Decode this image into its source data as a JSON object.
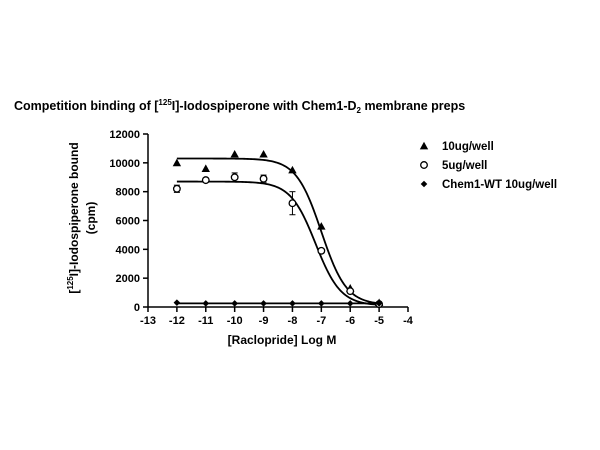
{
  "chart_data": {
    "type": "scatter",
    "title_parts": {
      "pre": "Competition binding of [",
      "sup": "125",
      "mid": "I]-Iodospiperone with Chem1-D",
      "sub": "2",
      "post": " membrane preps"
    },
    "xlabel": "[Raclopride] Log M",
    "ylabel_parts": {
      "pre": "[",
      "sup": "125",
      "mid": "I]-Iodospiperone bound",
      "line2": "(cpm)"
    },
    "xlim": [
      -13,
      -4
    ],
    "ylim": [
      0,
      12000
    ],
    "x_ticks": [
      -13,
      -12,
      -11,
      -10,
      -9,
      -8,
      -7,
      -6,
      -5,
      -4
    ],
    "y_ticks": [
      0,
      2000,
      4000,
      6000,
      8000,
      10000,
      12000
    ],
    "x_tick_labels": [
      "-13",
      "-12",
      "-11",
      "-10",
      "-9",
      "-8",
      "-7",
      "-6",
      "-5",
      "-4"
    ],
    "y_tick_labels": [
      "0",
      "2000",
      "4000",
      "6000",
      "8000",
      "10000",
      "12000"
    ],
    "legend_position": "right",
    "series": [
      {
        "name": "10ug/well",
        "marker": "triangle",
        "x": [
          -12,
          -11,
          -10,
          -9,
          -8,
          -7,
          -6,
          -5
        ],
        "y": [
          10000,
          9600,
          10600,
          10600,
          9500,
          5600,
          1300,
          300
        ],
        "fit": {
          "top": 10300,
          "bottom": 150,
          "logIC50": -7.0,
          "hill": 1.0
        }
      },
      {
        "name": "5ug/well",
        "marker": "circle",
        "x": [
          -12,
          -11,
          -10,
          -9,
          -8,
          -7,
          -6,
          -5
        ],
        "y": [
          8200,
          8800,
          9000,
          8900,
          7200,
          3900,
          1100,
          200
        ],
        "err": [
          250,
          150,
          300,
          250,
          800,
          150,
          100,
          50
        ],
        "fit": {
          "top": 8700,
          "bottom": 100,
          "logIC50": -7.2,
          "hill": 1.0
        }
      },
      {
        "name": "Chem1-WT 10ug/well",
        "marker": "diamond",
        "x": [
          -12,
          -11,
          -10,
          -9,
          -8,
          -7,
          -6,
          -5
        ],
        "y": [
          300,
          250,
          250,
          250,
          250,
          250,
          250,
          250
        ],
        "fit": {
          "top": 250,
          "bottom": 250,
          "logIC50": -7.0,
          "hill": 1.0
        }
      }
    ]
  }
}
